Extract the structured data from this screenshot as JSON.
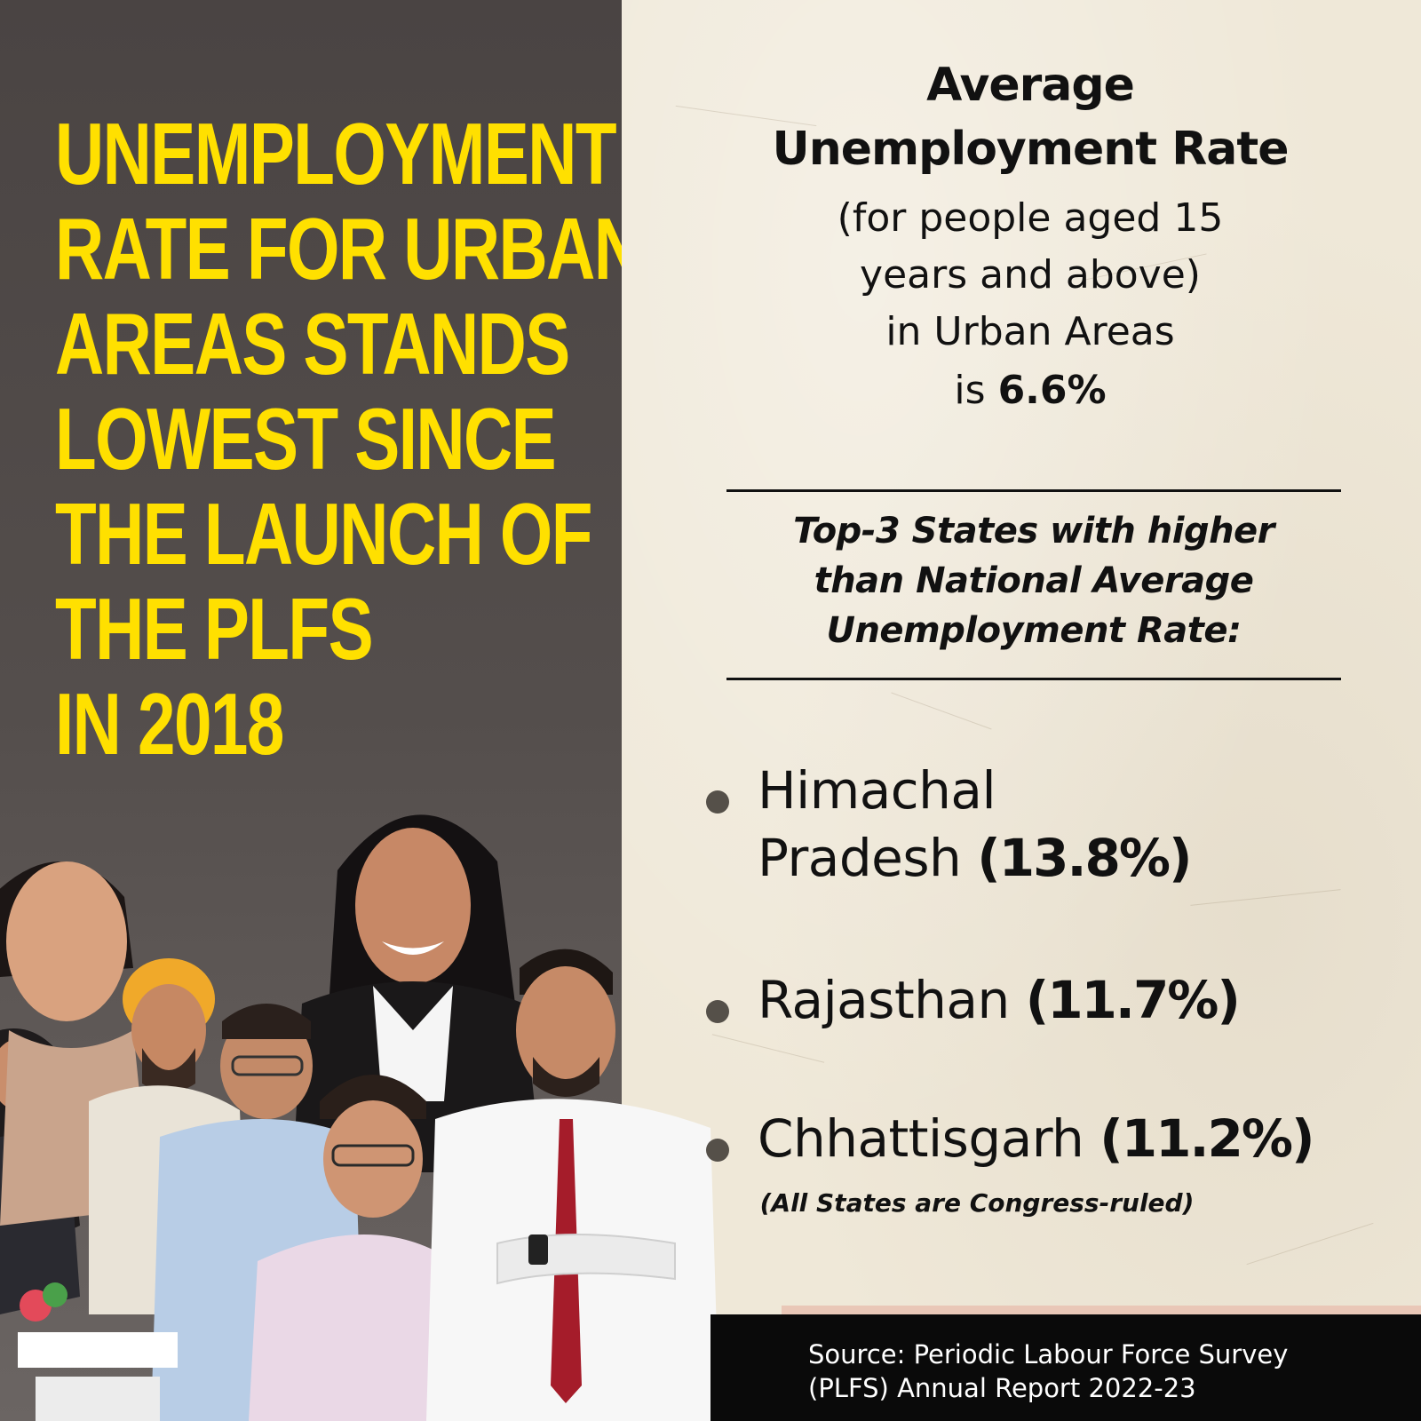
{
  "headline": {
    "lines": [
      "UNEMPLOYMENT",
      "RATE FOR URBAN",
      "AREAS STANDS",
      "LOWEST SINCE",
      "THE LAUNCH OF",
      "THE PLFS",
      "IN 2018"
    ]
  },
  "average": {
    "title_line1": "Average",
    "title_line2": "Unemployment Rate",
    "sub_line1": "(for people aged 15",
    "sub_line2": "years and above)",
    "sub_line3": "in Urban Areas",
    "value_prefix": "is",
    "value": "6.6%"
  },
  "top3": {
    "line1": "Top-3 States with higher",
    "line2": "than National Average",
    "line3": "Unemployment Rate:"
  },
  "states": [
    {
      "name_line1": "Himachal",
      "name_line2": "Pradesh",
      "value": "(13.8%)"
    },
    {
      "name": "Rajasthan",
      "value": "(11.7%)"
    },
    {
      "name": "Chhattisgarh",
      "value": "(11.2%)"
    }
  ],
  "note": "(All States are Congress-ruled)",
  "source": {
    "line1": "Source: Periodic Labour Force Survey",
    "line2": "(PLFS) Annual Report 2022-23"
  },
  "colors": {
    "headline": "#ffe000",
    "left_panel": "#4f4948",
    "paper": "#efe8d8",
    "source_bar": "#0a0a0a"
  }
}
